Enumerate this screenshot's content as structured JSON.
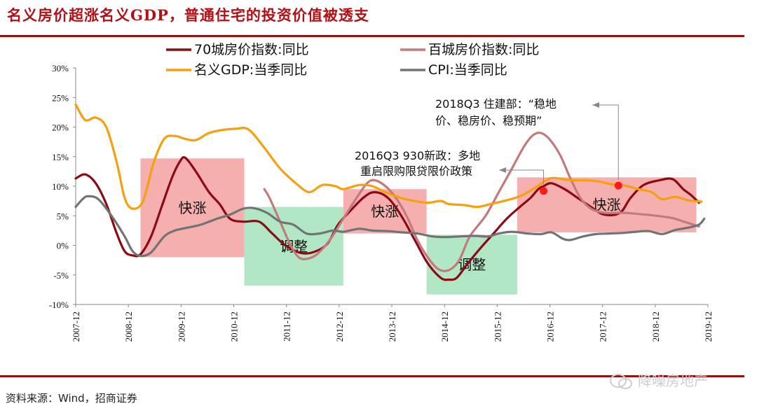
{
  "title": "名义房价超涨名义GDP，普通住宅的投资价值被透支",
  "source": "资料来源：Wind，招商证券",
  "watermark": "降噪房地产",
  "colors": {
    "brand_red": "#b30f15",
    "rule": "#9b0f0f",
    "hot_box": "#f4a6a6",
    "cool_box": "#a8e4bf",
    "marker": "#ff1a1a"
  },
  "chart_data": {
    "type": "line",
    "ylim": [
      -10,
      30
    ],
    "yticks": [
      "-10%",
      "-5%",
      "0%",
      "5%",
      "10%",
      "15%",
      "20%",
      "25%",
      "30%"
    ],
    "xticks": [
      "2007-12",
      "2008-12",
      "2009-12",
      "2010-12",
      "2011-12",
      "2012-12",
      "2013-12",
      "2014-12",
      "2015-12",
      "2016-12",
      "2017-12",
      "2018-12",
      "2019-12"
    ],
    "legend_position": "top",
    "grid": false,
    "series": [
      {
        "name": "70城房价指数:同比",
        "color": "#8b0a14",
        "points": [
          [
            2007.92,
            11.3
          ],
          [
            2008.1,
            12.0
          ],
          [
            2008.3,
            10.5
          ],
          [
            2008.5,
            7.0
          ],
          [
            2008.7,
            2.0
          ],
          [
            2008.85,
            -1.0
          ],
          [
            2009.0,
            -1.7
          ],
          [
            2009.15,
            -1.5
          ],
          [
            2009.35,
            1.5
          ],
          [
            2009.55,
            6.5
          ],
          [
            2009.75,
            11.5
          ],
          [
            2009.9,
            14.2
          ],
          [
            2010.0,
            14.8
          ],
          [
            2010.2,
            12.5
          ],
          [
            2010.45,
            9.0
          ],
          [
            2010.65,
            7.0
          ],
          [
            2010.85,
            4.5
          ],
          [
            2011.1,
            4.0
          ],
          [
            2011.4,
            4.0
          ],
          [
            2011.65,
            2.0
          ],
          [
            2011.9,
            0.0
          ],
          [
            2012.2,
            -1.3
          ],
          [
            2012.45,
            -1.1
          ],
          [
            2012.7,
            0.3
          ],
          [
            2012.9,
            3.5
          ],
          [
            2013.15,
            6.0
          ],
          [
            2013.4,
            8.2
          ],
          [
            2013.6,
            9.0
          ],
          [
            2013.85,
            8.0
          ],
          [
            2014.1,
            5.0
          ],
          [
            2014.35,
            1.0
          ],
          [
            2014.6,
            -3.0
          ],
          [
            2014.85,
            -5.5
          ],
          [
            2015.0,
            -5.8
          ],
          [
            2015.15,
            -5.5
          ],
          [
            2015.35,
            -3.2
          ],
          [
            2015.6,
            -0.5
          ],
          [
            2015.85,
            2.0
          ],
          [
            2016.1,
            4.5
          ],
          [
            2016.35,
            6.5
          ],
          [
            2016.55,
            8.0
          ],
          [
            2016.7,
            9.5
          ],
          [
            2016.8,
            10.0
          ],
          [
            2016.95,
            10.5
          ],
          [
            2017.2,
            9.5
          ],
          [
            2017.45,
            8.0
          ],
          [
            2017.7,
            6.5
          ],
          [
            2017.95,
            5.2
          ],
          [
            2018.25,
            5.5
          ],
          [
            2018.45,
            8.0
          ],
          [
            2018.7,
            10.2
          ],
          [
            2019.0,
            11.0
          ],
          [
            2019.25,
            11.2
          ],
          [
            2019.45,
            9.5
          ],
          [
            2019.6,
            8.5
          ],
          [
            2019.75,
            7.2
          ]
        ]
      },
      {
        "name": "百城房价指数:同比",
        "color": "#c27a7c",
        "points": [
          [
            2011.5,
            9.5
          ],
          [
            2011.6,
            8.0
          ],
          [
            2011.8,
            4.0
          ],
          [
            2012.0,
            0.0
          ],
          [
            2012.15,
            -2.0
          ],
          [
            2012.3,
            -2.3
          ],
          [
            2012.5,
            -1.5
          ],
          [
            2012.75,
            1.0
          ],
          [
            2013.0,
            4.5
          ],
          [
            2013.25,
            8.0
          ],
          [
            2013.45,
            10.5
          ],
          [
            2013.6,
            11.0
          ],
          [
            2013.8,
            10.0
          ],
          [
            2014.0,
            8.0
          ],
          [
            2014.2,
            5.0
          ],
          [
            2014.4,
            1.0
          ],
          [
            2014.6,
            -2.0
          ],
          [
            2014.8,
            -4.0
          ],
          [
            2015.0,
            -4.2
          ],
          [
            2015.2,
            -2.5
          ],
          [
            2015.4,
            1.5
          ],
          [
            2015.7,
            5.0
          ],
          [
            2015.95,
            9.0
          ],
          [
            2016.2,
            13.0
          ],
          [
            2016.45,
            17.0
          ],
          [
            2016.65,
            18.9
          ],
          [
            2016.85,
            18.5
          ],
          [
            2017.1,
            15.5
          ],
          [
            2017.3,
            11.5
          ],
          [
            2017.5,
            8.0
          ],
          [
            2017.7,
            6.2
          ],
          [
            2017.95,
            5.5
          ],
          [
            2018.3,
            5.5
          ],
          [
            2018.6,
            5.3
          ],
          [
            2018.95,
            5.0
          ],
          [
            2019.25,
            4.6
          ],
          [
            2019.5,
            3.9
          ],
          [
            2019.75,
            3.2
          ]
        ]
      },
      {
        "name": "名义GDP:当季同比",
        "color": "#f5a00c",
        "points": [
          [
            2007.92,
            23.8
          ],
          [
            2008.1,
            21.2
          ],
          [
            2008.3,
            21.6
          ],
          [
            2008.5,
            20.0
          ],
          [
            2008.7,
            14.0
          ],
          [
            2008.85,
            8.0
          ],
          [
            2009.0,
            6.2
          ],
          [
            2009.2,
            7.5
          ],
          [
            2009.4,
            14.0
          ],
          [
            2009.6,
            18.0
          ],
          [
            2009.8,
            18.5
          ],
          [
            2010.0,
            18.0
          ],
          [
            2010.2,
            17.8
          ],
          [
            2010.45,
            19.0
          ],
          [
            2010.7,
            19.5
          ],
          [
            2010.95,
            19.7
          ],
          [
            2011.2,
            19.6
          ],
          [
            2011.5,
            16.5
          ],
          [
            2011.8,
            13.0
          ],
          [
            2012.1,
            10.5
          ],
          [
            2012.35,
            9.0
          ],
          [
            2012.6,
            10.2
          ],
          [
            2012.85,
            10.0
          ],
          [
            2013.0,
            9.5
          ],
          [
            2013.3,
            10.2
          ],
          [
            2013.55,
            10.0
          ],
          [
            2013.8,
            9.0
          ],
          [
            2014.1,
            8.0
          ],
          [
            2014.35,
            7.5
          ],
          [
            2014.6,
            7.2
          ],
          [
            2014.85,
            7.5
          ],
          [
            2015.0,
            7.0
          ],
          [
            2015.3,
            6.8
          ],
          [
            2015.55,
            6.5
          ],
          [
            2015.8,
            7.0
          ],
          [
            2016.05,
            7.5
          ],
          [
            2016.35,
            8.3
          ],
          [
            2016.6,
            9.5
          ],
          [
            2016.85,
            11.0
          ],
          [
            2017.0,
            11.4
          ],
          [
            2017.3,
            11.0
          ],
          [
            2017.6,
            11.0
          ],
          [
            2017.85,
            10.8
          ],
          [
            2018.1,
            10.3
          ],
          [
            2018.3,
            10.2
          ],
          [
            2018.6,
            9.5
          ],
          [
            2018.85,
            9.0
          ],
          [
            2019.05,
            7.8
          ],
          [
            2019.3,
            8.2
          ],
          [
            2019.55,
            7.6
          ],
          [
            2019.8,
            7.4
          ]
        ]
      },
      {
        "name": "CPI:当季同比",
        "color": "#737373",
        "points": [
          [
            2007.92,
            6.5
          ],
          [
            2008.05,
            7.8
          ],
          [
            2008.15,
            8.3
          ],
          [
            2008.35,
            7.8
          ],
          [
            2008.6,
            5.0
          ],
          [
            2008.85,
            1.5
          ],
          [
            2009.0,
            -1.0
          ],
          [
            2009.15,
            -1.8
          ],
          [
            2009.35,
            -1.2
          ],
          [
            2009.6,
            1.5
          ],
          [
            2009.8,
            2.5
          ],
          [
            2010.05,
            3.0
          ],
          [
            2010.3,
            3.5
          ],
          [
            2010.6,
            4.5
          ],
          [
            2010.85,
            5.2
          ],
          [
            2011.1,
            6.2
          ],
          [
            2011.3,
            6.3
          ],
          [
            2011.55,
            5.5
          ],
          [
            2011.8,
            4.0
          ],
          [
            2012.05,
            3.5
          ],
          [
            2012.3,
            2.0
          ],
          [
            2012.55,
            2.0
          ],
          [
            2012.8,
            2.5
          ],
          [
            2013.0,
            2.3
          ],
          [
            2013.3,
            2.8
          ],
          [
            2013.55,
            2.5
          ],
          [
            2013.85,
            2.4
          ],
          [
            2014.1,
            2.2
          ],
          [
            2014.4,
            2.0
          ],
          [
            2014.7,
            1.5
          ],
          [
            2014.95,
            1.4
          ],
          [
            2015.2,
            1.5
          ],
          [
            2015.5,
            1.6
          ],
          [
            2015.75,
            1.5
          ],
          [
            2015.95,
            2.0
          ],
          [
            2016.2,
            2.3
          ],
          [
            2016.5,
            2.0
          ],
          [
            2016.75,
            1.9
          ],
          [
            2016.95,
            2.2
          ],
          [
            2017.15,
            1.2
          ],
          [
            2017.3,
            0.9
          ],
          [
            2017.55,
            1.5
          ],
          [
            2017.8,
            1.9
          ],
          [
            2018.05,
            2.0
          ],
          [
            2018.3,
            2.1
          ],
          [
            2018.55,
            2.3
          ],
          [
            2018.8,
            2.4
          ],
          [
            2019.05,
            1.9
          ],
          [
            2019.3,
            2.6
          ],
          [
            2019.55,
            3.0
          ],
          [
            2019.75,
            3.5
          ],
          [
            2019.85,
            4.5
          ]
        ]
      }
    ],
    "regions": [
      {
        "label": "快涨",
        "kind": "hot",
        "x0": 2009.15,
        "x1": 2011.12,
        "y0": -2.0,
        "y1": 14.7
      },
      {
        "label": "调整",
        "kind": "cool",
        "x0": 2011.12,
        "x1": 2013.0,
        "y0": -6.8,
        "y1": 6.5
      },
      {
        "label": "快涨",
        "kind": "hot",
        "x0": 2013.0,
        "x1": 2014.58,
        "y0": 2.0,
        "y1": 9.5
      },
      {
        "label": "调整",
        "kind": "cool",
        "x0": 2014.58,
        "x1": 2016.3,
        "y0": -8.3,
        "y1": 1.8
      },
      {
        "label": "快涨",
        "kind": "hot",
        "x0": 2016.3,
        "x1": 2019.7,
        "y0": 2.2,
        "y1": 11.5
      }
    ],
    "markers": [
      {
        "x": 2016.8,
        "y": 9.2
      },
      {
        "x": 2018.22,
        "y": 10.1
      }
    ],
    "annotations": [
      {
        "lines": [
          "2016Q3 930新政：多地",
          "重启限购限贷限价政策"
        ]
      },
      {
        "lines": [
          "2018Q3 住建部：“稳地",
          "价、稳房价、稳预期”"
        ]
      }
    ]
  }
}
